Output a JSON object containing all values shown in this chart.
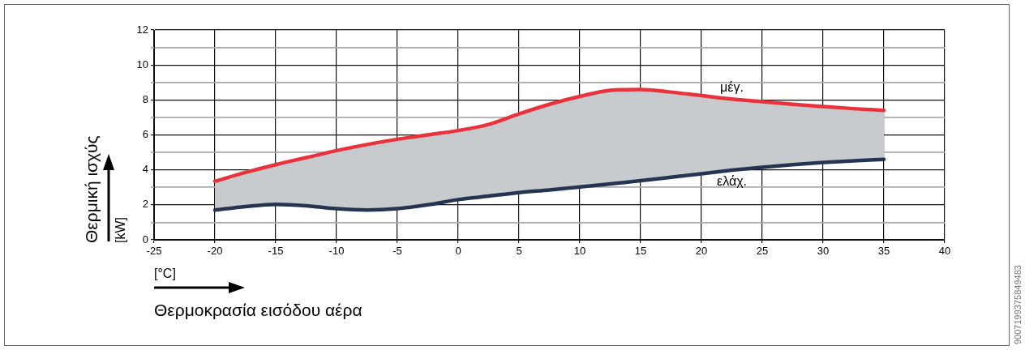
{
  "chart_data": {
    "type": "line",
    "xlabel": "Θερμοκρασία εισόδου αέρα",
    "ylabel": "Θερμική ισχύς",
    "annotations": [
      "[°C]",
      "[kW]",
      "9007199375849483"
    ],
    "x": [
      -20,
      -17.5,
      -15,
      -12.5,
      -10,
      -7.5,
      -5,
      -2.5,
      0,
      2.5,
      5,
      7.5,
      10,
      12.5,
      15,
      17.5,
      20,
      22.5,
      25,
      27.5,
      30,
      32.5,
      35
    ],
    "series": [
      {
        "name": "μέγ.",
        "color": "#e8333c",
        "values": [
          3.35,
          3.85,
          4.3,
          4.7,
          5.1,
          5.45,
          5.75,
          6.0,
          6.25,
          6.6,
          7.2,
          7.75,
          8.2,
          8.55,
          8.6,
          8.45,
          8.25,
          8.05,
          7.9,
          7.75,
          7.62,
          7.5,
          7.4
        ],
        "lower": [
          1.7,
          1.9,
          2.03,
          1.95,
          1.78,
          1.7,
          1.78,
          2.0,
          2.3,
          2.5,
          2.7,
          2.85,
          3.02,
          3.2,
          3.38,
          3.58,
          3.78,
          3.98,
          4.15,
          4.3,
          4.42,
          4.52,
          4.6
        ],
        "upper": [
          3.35,
          3.85,
          4.3,
          4.7,
          5.1,
          5.45,
          5.75,
          6.0,
          6.25,
          6.6,
          7.2,
          7.75,
          8.2,
          8.55,
          8.6,
          8.45,
          8.25,
          8.05,
          7.9,
          7.75,
          7.62,
          7.5,
          7.4
        ]
      },
      {
        "name": "ελάχ.",
        "color": "#253551",
        "values": [
          1.7,
          1.9,
          2.03,
          1.95,
          1.78,
          1.7,
          1.78,
          2.0,
          2.3,
          2.5,
          2.7,
          2.85,
          3.02,
          3.2,
          3.38,
          3.58,
          3.78,
          3.98,
          4.15,
          4.3,
          4.42,
          4.52,
          4.6
        ]
      }
    ],
    "xlim": [
      -25,
      40
    ],
    "xticks": [
      -25,
      -20,
      -15,
      -10,
      -5,
      0,
      5,
      10,
      15,
      20,
      25,
      30,
      35,
      40
    ],
    "ylim": [
      0,
      12
    ],
    "yticks": [
      0,
      {
        "value": 1,
        "label": null
      },
      2,
      {
        "value": 3,
        "label": null
      },
      4,
      {
        "value": 5,
        "label": null
      },
      6,
      {
        "value": 7,
        "label": null
      },
      8,
      {
        "value": 9,
        "label": null
      },
      10,
      {
        "value": 11,
        "label": null
      },
      12
    ],
    "grid": true,
    "legend": false,
    "marker": "none",
    "line_style": "solid"
  }
}
